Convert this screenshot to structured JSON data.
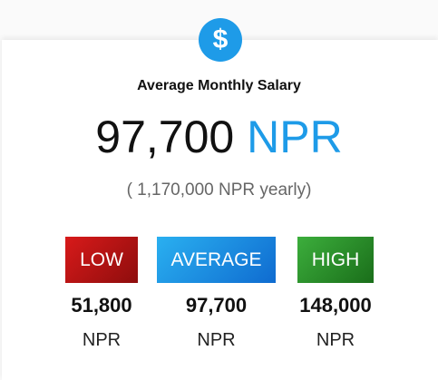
{
  "header": {
    "icon": "$",
    "title": "Average Monthly Salary"
  },
  "main": {
    "amount": "97,700",
    "currency": "NPR",
    "yearly": "( 1,170,000 NPR yearly)"
  },
  "levels": [
    {
      "label": "LOW",
      "amount": "51,800",
      "currency": "NPR"
    },
    {
      "label": "AVERAGE",
      "amount": "97,700",
      "currency": "NPR"
    },
    {
      "label": "HIGH",
      "amount": "148,000",
      "currency": "NPR"
    }
  ]
}
